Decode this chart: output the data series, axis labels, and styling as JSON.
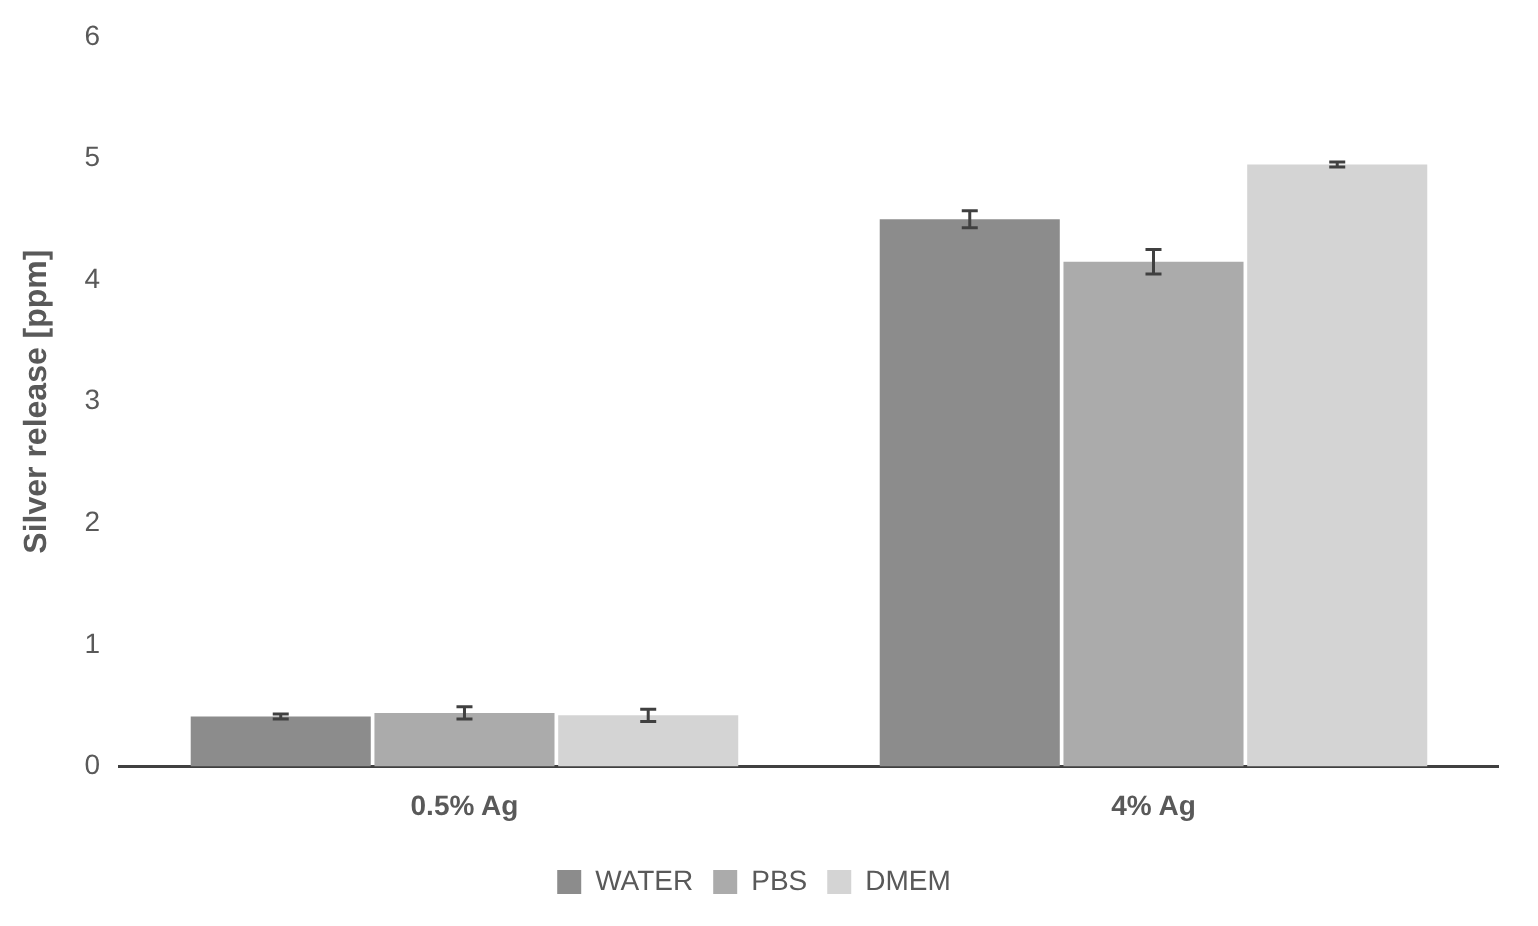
{
  "chart_data": {
    "type": "bar",
    "ylabel": "Silver release [ppm]",
    "categories": [
      "0.5% Ag",
      "4% Ag"
    ],
    "series": [
      {
        "name": "WATER",
        "color": "#8c8c8c",
        "values": [
          0.41,
          4.5
        ],
        "errors": [
          0.02,
          0.07
        ]
      },
      {
        "name": "PBS",
        "color": "#ababab",
        "values": [
          0.44,
          4.15
        ],
        "errors": [
          0.05,
          0.1
        ]
      },
      {
        "name": "DMEM",
        "color": "#d4d4d4",
        "values": [
          0.42,
          4.95
        ],
        "errors": [
          0.05,
          0.02
        ]
      }
    ],
    "ylim": [
      0,
      6
    ],
    "yticks": [
      0,
      1,
      2,
      3,
      4,
      5,
      6
    ],
    "grid": false,
    "legend": "bottom"
  }
}
